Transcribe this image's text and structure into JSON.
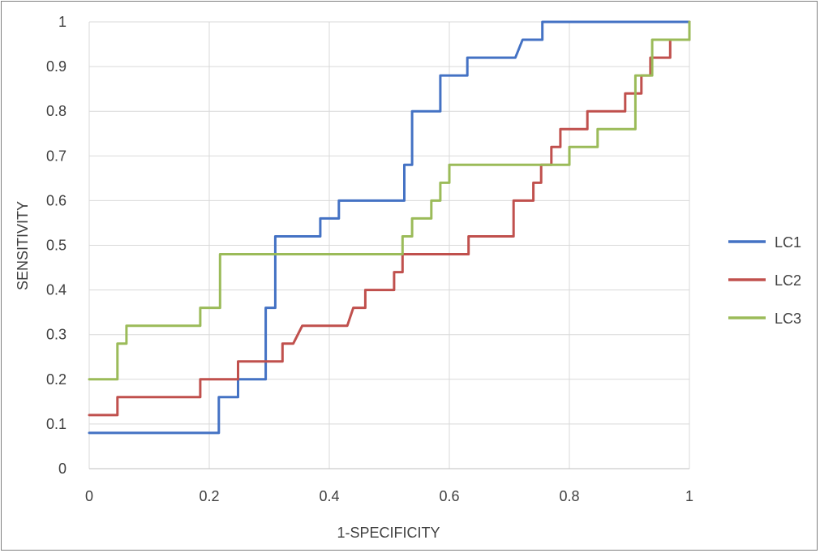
{
  "chart_data": {
    "type": "line",
    "title": "",
    "xlabel": "1-SPECIFICITY",
    "ylabel": "SENSITIVITY",
    "xlim": [
      0,
      1
    ],
    "ylim": [
      0,
      1
    ],
    "x_ticks": [
      "0",
      "0.2",
      "0.4",
      "0.6",
      "0.8",
      "1"
    ],
    "y_ticks": [
      "0",
      "0.1",
      "0.2",
      "0.3",
      "0.4",
      "0.5",
      "0.6",
      "0.7",
      "0.8",
      "0.9",
      "1"
    ],
    "grid": true,
    "legend_position": "right",
    "series": [
      {
        "name": "LC1",
        "color": "#4472c4",
        "points": [
          [
            0,
            0.08
          ],
          [
            0.216,
            0.08
          ],
          [
            0.216,
            0.16
          ],
          [
            0.248,
            0.16
          ],
          [
            0.248,
            0.2
          ],
          [
            0.294,
            0.2
          ],
          [
            0.294,
            0.36
          ],
          [
            0.31,
            0.36
          ],
          [
            0.31,
            0.52
          ],
          [
            0.385,
            0.52
          ],
          [
            0.385,
            0.56
          ],
          [
            0.416,
            0.56
          ],
          [
            0.416,
            0.6
          ],
          [
            0.525,
            0.6
          ],
          [
            0.525,
            0.68
          ],
          [
            0.538,
            0.68
          ],
          [
            0.538,
            0.8
          ],
          [
            0.585,
            0.8
          ],
          [
            0.585,
            0.88
          ],
          [
            0.63,
            0.88
          ],
          [
            0.63,
            0.92
          ],
          [
            0.71,
            0.92
          ],
          [
            0.722,
            0.96
          ],
          [
            0.755,
            0.96
          ],
          [
            0.755,
            1
          ],
          [
            1,
            1
          ]
        ]
      },
      {
        "name": "LC2",
        "color": "#c0504d",
        "points": [
          [
            0,
            0.12
          ],
          [
            0.047,
            0.12
          ],
          [
            0.047,
            0.16
          ],
          [
            0.185,
            0.16
          ],
          [
            0.185,
            0.2
          ],
          [
            0.248,
            0.2
          ],
          [
            0.248,
            0.24
          ],
          [
            0.322,
            0.24
          ],
          [
            0.322,
            0.28
          ],
          [
            0.34,
            0.28
          ],
          [
            0.355,
            0.32
          ],
          [
            0.43,
            0.32
          ],
          [
            0.44,
            0.36
          ],
          [
            0.46,
            0.36
          ],
          [
            0.46,
            0.4
          ],
          [
            0.508,
            0.4
          ],
          [
            0.508,
            0.44
          ],
          [
            0.522,
            0.44
          ],
          [
            0.522,
            0.48
          ],
          [
            0.632,
            0.48
          ],
          [
            0.632,
            0.52
          ],
          [
            0.707,
            0.52
          ],
          [
            0.707,
            0.6
          ],
          [
            0.74,
            0.6
          ],
          [
            0.74,
            0.64
          ],
          [
            0.753,
            0.64
          ],
          [
            0.753,
            0.68
          ],
          [
            0.77,
            0.68
          ],
          [
            0.77,
            0.72
          ],
          [
            0.785,
            0.72
          ],
          [
            0.785,
            0.76
          ],
          [
            0.83,
            0.76
          ],
          [
            0.83,
            0.8
          ],
          [
            0.893,
            0.8
          ],
          [
            0.893,
            0.84
          ],
          [
            0.92,
            0.84
          ],
          [
            0.92,
            0.88
          ],
          [
            0.935,
            0.88
          ],
          [
            0.935,
            0.92
          ],
          [
            0.968,
            0.92
          ],
          [
            0.968,
            0.96
          ],
          [
            1,
            0.96
          ],
          [
            1,
            1
          ]
        ]
      },
      {
        "name": "LC3",
        "color": "#9bbb59",
        "points": [
          [
            0,
            0.2
          ],
          [
            0.047,
            0.2
          ],
          [
            0.047,
            0.28
          ],
          [
            0.062,
            0.28
          ],
          [
            0.062,
            0.32
          ],
          [
            0.185,
            0.32
          ],
          [
            0.185,
            0.36
          ],
          [
            0.218,
            0.36
          ],
          [
            0.218,
            0.48
          ],
          [
            0.522,
            0.48
          ],
          [
            0.522,
            0.52
          ],
          [
            0.538,
            0.52
          ],
          [
            0.538,
            0.56
          ],
          [
            0.57,
            0.56
          ],
          [
            0.57,
            0.6
          ],
          [
            0.585,
            0.6
          ],
          [
            0.585,
            0.64
          ],
          [
            0.6,
            0.64
          ],
          [
            0.6,
            0.68
          ],
          [
            0.8,
            0.68
          ],
          [
            0.8,
            0.72
          ],
          [
            0.847,
            0.72
          ],
          [
            0.847,
            0.76
          ],
          [
            0.91,
            0.76
          ],
          [
            0.91,
            0.88
          ],
          [
            0.938,
            0.88
          ],
          [
            0.938,
            0.96
          ],
          [
            1,
            0.96
          ],
          [
            1,
            1
          ]
        ]
      }
    ]
  }
}
